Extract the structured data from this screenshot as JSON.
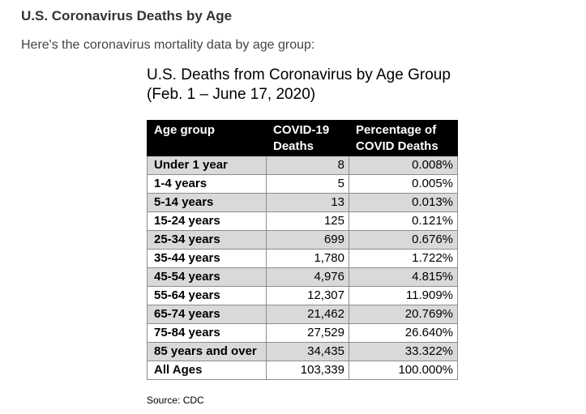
{
  "page": {
    "heading": "U.S. Coronavirus Deaths by Age",
    "intro": "Here's the coronavirus mortality data by age group:"
  },
  "figure": {
    "title_line1": "U.S. Deaths from Coronavirus by Age Group",
    "title_line2": "(Feb. 1 – June 17, 2020)",
    "source": "Source: CDC"
  },
  "table": {
    "headers": {
      "age": "Age group",
      "deaths_line1": "COVID-19",
      "deaths_line2": "Deaths",
      "pct_line1": "Percentage of",
      "pct_line2": "COVID Deaths"
    },
    "rows": [
      {
        "age": "Under 1 year",
        "deaths": "8",
        "pct": "0.008%",
        "shaded": true
      },
      {
        "age": "1-4 years",
        "deaths": "5",
        "pct": "0.005%",
        "shaded": false
      },
      {
        "age": "5-14 years",
        "deaths": "13",
        "pct": "0.013%",
        "shaded": true
      },
      {
        "age": "15-24 years",
        "deaths": "125",
        "pct": "0.121%",
        "shaded": false
      },
      {
        "age": "25-34 years",
        "deaths": "699",
        "pct": "0.676%",
        "shaded": true
      },
      {
        "age": "35-44 years",
        "deaths": "1,780",
        "pct": "1.722%",
        "shaded": false
      },
      {
        "age": "45-54 years",
        "deaths": "4,976",
        "pct": "4.815%",
        "shaded": true
      },
      {
        "age": "55-64 years",
        "deaths": "12,307",
        "pct": "11.909%",
        "shaded": false
      },
      {
        "age": "65-74 years",
        "deaths": "21,462",
        "pct": "20.769%",
        "shaded": true
      },
      {
        "age": "75-84 years",
        "deaths": "27,529",
        "pct": "26.640%",
        "shaded": false
      },
      {
        "age": "85 years and over",
        "deaths": "34,435",
        "pct": "33.322%",
        "shaded": true
      },
      {
        "age": "All Ages",
        "deaths": "103,339",
        "pct": "100.000%",
        "shaded": false
      }
    ]
  }
}
